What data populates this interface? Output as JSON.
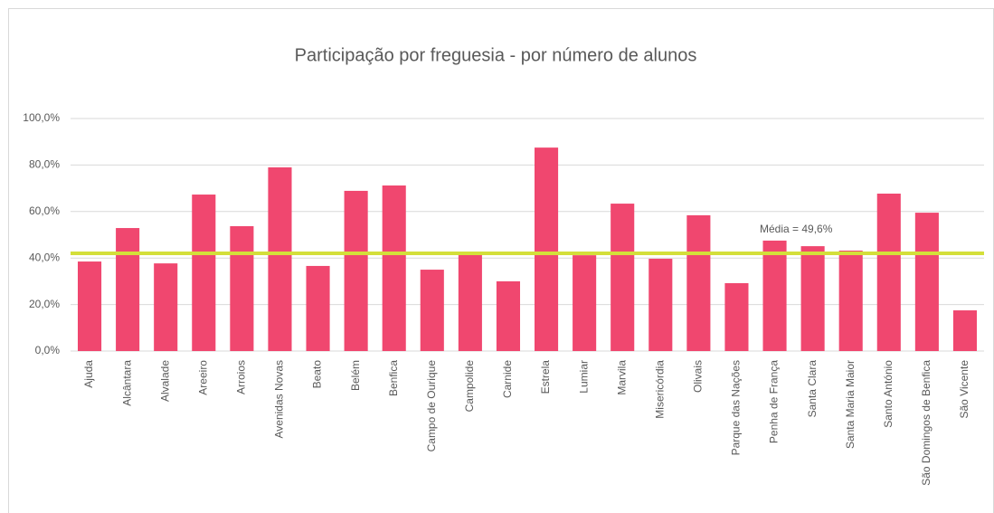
{
  "chart_data": {
    "type": "bar",
    "title": "Participação por freguesia - por número de alunos",
    "categories": [
      "Ajuda",
      "Alcântara",
      "Alvalade",
      "Areeiro",
      "Arroios",
      "Avenidas Novas",
      "Beato",
      "Belém",
      "Benfica",
      "Campo de Ourique",
      "Campolide",
      "Carnide",
      "Estrela",
      "Lumiar",
      "Marvila",
      "Misericórdia",
      "Olivais",
      "Parque das Nações",
      "Penha de França",
      "Santa Clara",
      "Santa Maria Maior",
      "Santo António",
      "São Domingos de Benfica",
      "São Vicente"
    ],
    "values": [
      38.5,
      52.9,
      37.7,
      67.3,
      53.7,
      79.0,
      36.6,
      68.9,
      71.2,
      35.0,
      41.6,
      30.0,
      87.5,
      41.2,
      63.4,
      39.7,
      58.4,
      29.2,
      47.5,
      45.1,
      43.2,
      67.7,
      59.5,
      17.5
    ],
    "color": "#f0476f",
    "ylim": [
      0,
      100
    ],
    "yticks": [
      {
        "value": 0,
        "label": "0,0%"
      },
      {
        "value": 20,
        "label": "20,0%"
      },
      {
        "value": 40,
        "label": "40,0%"
      },
      {
        "value": 60,
        "label": "60,0%"
      },
      {
        "value": 80,
        "label": "80,0%"
      },
      {
        "value": 100,
        "label": "100,0%"
      }
    ],
    "grid": true,
    "reference_line": {
      "value": 42,
      "color": "#d4df3a"
    },
    "annotation": "Média = 49,6%"
  }
}
